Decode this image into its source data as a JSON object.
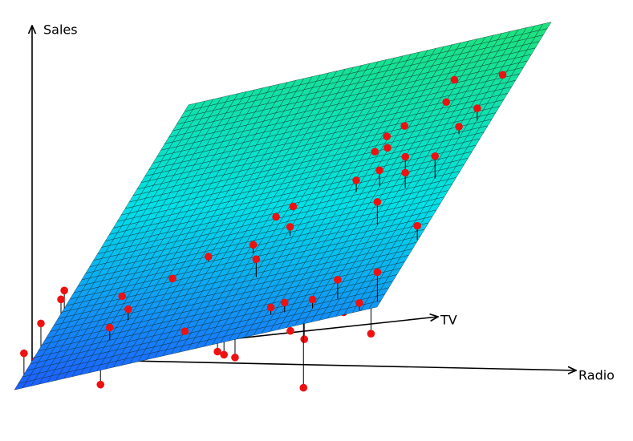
{
  "chart_data": {
    "type": "scatter3d",
    "x_label": "TV",
    "y_label": "Radio",
    "z_label": "Sales",
    "xlim": [
      0,
      300
    ],
    "ylim": [
      0,
      50
    ],
    "surface_colors": [
      "#1f5cff",
      "#00e0e8",
      "#1ee27a"
    ],
    "series": [
      {
        "color": "#ee1111",
        "x": [
          295.9,
          299,
          295.5,
          268.8,
          254.3,
          243.9,
          255.7,
          269.7,
          225.2,
          229.2,
          234.3,
          220.5,
          188.6,
          200.1,
          209.7,
          205.6,
          189.2,
          189.9,
          188.0,
          161.2,
          141.1,
          137.3,
          146.7,
          146.6,
          100.5,
          179.9,
          141.6,
          137.1,
          100.2,
          126.6,
          137.6,
          111.3,
          70.4,
          103,
          143.2,
          114,
          87.5,
          144.8,
          112,
          126.7,
          109.8,
          94.6,
          117.6,
          85.9,
          80.2,
          82.6,
          45.6,
          16.4,
          33.3,
          86.1,
          81.9,
          53.6,
          34.2,
          70.6,
          6.8,
          2,
          0.8,
          3.7,
          20.8,
          16.3,
          19.4,
          20.7,
          15.6,
          17.7,
          0.7,
          6.9,
          5.2,
          12.5,
          4.9,
          23.6,
          15.2,
          0.8,
          68.9,
          72.8
        ],
        "y": [
          48.3,
          42.6,
          41.8,
          41.3,
          43.8,
          47.8,
          40.2,
          47.5,
          43.9,
          41.2,
          38.1,
          38.8,
          46.2,
          47.8,
          37.0,
          34.9,
          36.3,
          34.5,
          31.8,
          41.0,
          46.7,
          42.9,
          38.6,
          35.4,
          42.0,
          24.3,
          27.1,
          25.1,
          24.9,
          19.9,
          15.2,
          29.1,
          27.7,
          18.5,
          12.0,
          13.8,
          14.8,
          6.6,
          7.8,
          3.7,
          3.6,
          7.9,
          0.3,
          0,
          0,
          0.2,
          0,
          0,
          0.3,
          3.8,
          8.3,
          11.4,
          10.4,
          49.9,
          49.5,
          49,
          47.5,
          45.1,
          42.9,
          39.8,
          35.7,
          33.7,
          36.8,
          37.9,
          39.9,
          39.3,
          30.0,
          27,
          28.5,
          21.6,
          15.8,
          11.8,
          21.7,
          23.8
        ],
        "z": [
          27.9,
          27.0,
          26.3,
          25.4,
          25.1,
          25.5,
          25.1,
          26.1,
          23.3,
          23.5,
          23.1,
          22.3,
          21.8,
          23.2,
          21.8,
          21.0,
          20.2,
          19.9,
          19.2,
          19.7,
          19.9,
          18.6,
          18.8,
          18.0,
          16.6,
          17.2,
          16.0,
          15.2,
          13.3,
          13.7,
          13.9,
          14.6,
          12.4,
          12.4,
          13.4,
          11.8,
          10.8,
          11.9,
          10.9,
          10.8,
          10.0,
          10.1,
          10.1,
          10.2,
          9.5,
          7.7,
          7.9,
          5.7,
          4.8,
          9.0,
          9.5,
          8.7,
          7.4,
          14.7,
          11.6,
          6.2,
          9.0,
          8.2,
          10.9,
          9.3,
          9.1,
          8.7,
          6.6,
          7.5,
          6.0,
          1.6,
          4.6,
          5.1,
          4.9,
          6.9,
          5.4,
          2.8,
          9.3,
          10.0
        ]
      }
    ]
  }
}
